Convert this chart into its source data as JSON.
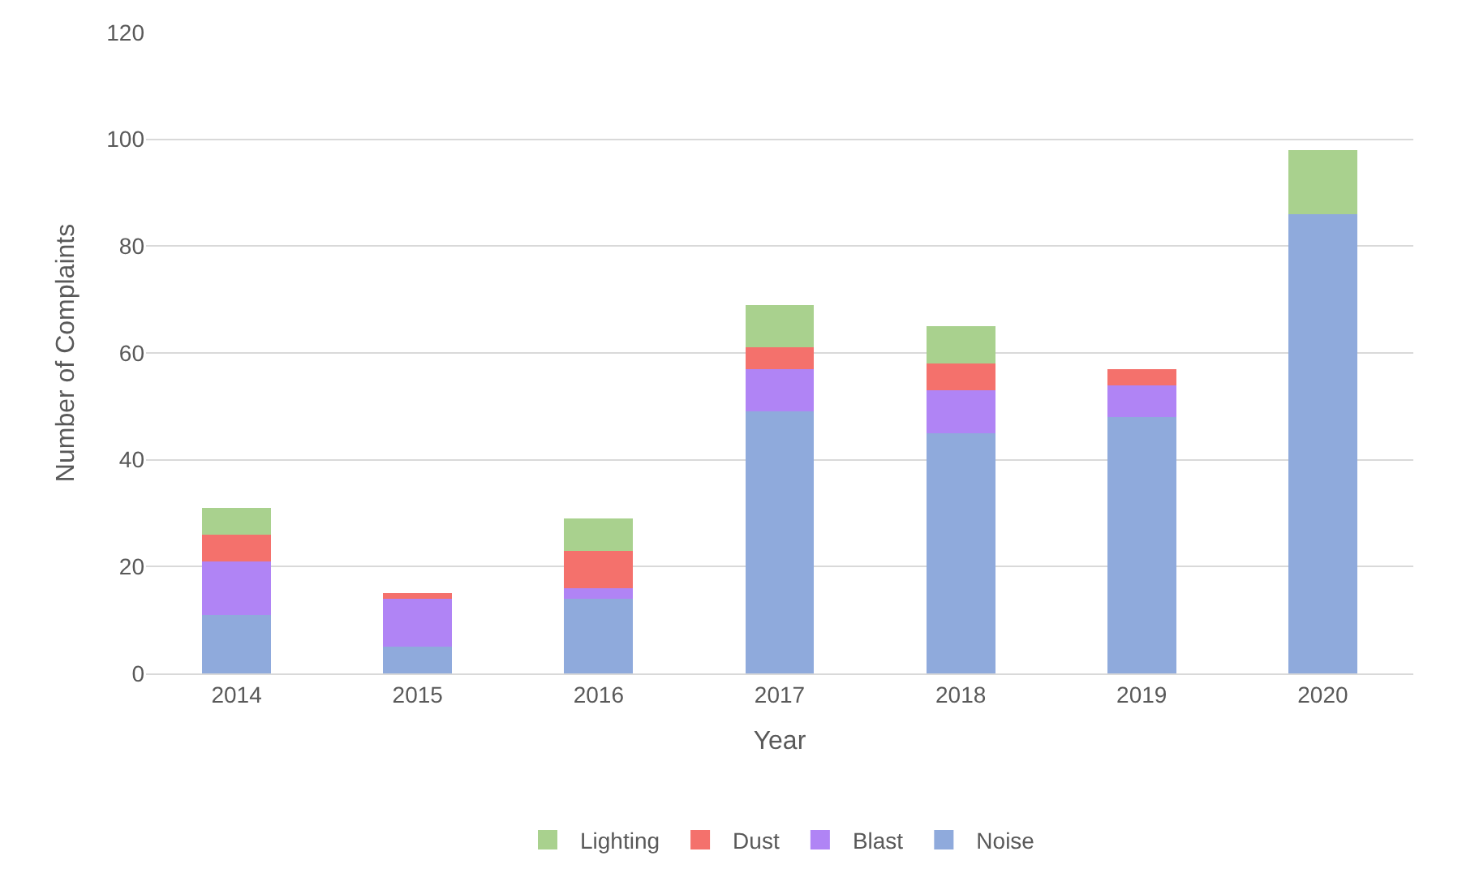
{
  "chart_data": {
    "type": "bar",
    "stacked": true,
    "xlabel": "Year",
    "ylabel": "Number of Complaints",
    "categories": [
      "2014",
      "2015",
      "2016",
      "2017",
      "2018",
      "2019",
      "2020"
    ],
    "series": [
      {
        "name": "Noise",
        "color": "#8faadc",
        "values": [
          11,
          5,
          14,
          49,
          45,
          48,
          86
        ]
      },
      {
        "name": "Blast",
        "color": "#b084f5",
        "values": [
          10,
          9,
          2,
          8,
          8,
          6,
          0
        ]
      },
      {
        "name": "Dust",
        "color": "#f4716c",
        "values": [
          5,
          1,
          7,
          4,
          5,
          3,
          0
        ]
      },
      {
        "name": "Lighting",
        "color": "#a9d18e",
        "values": [
          5,
          0,
          6,
          8,
          7,
          0,
          12
        ]
      }
    ],
    "ylim": [
      0,
      120
    ],
    "yticks": [
      0,
      20,
      40,
      60,
      80,
      100,
      120
    ],
    "grid": "y",
    "legend": "bottom"
  }
}
